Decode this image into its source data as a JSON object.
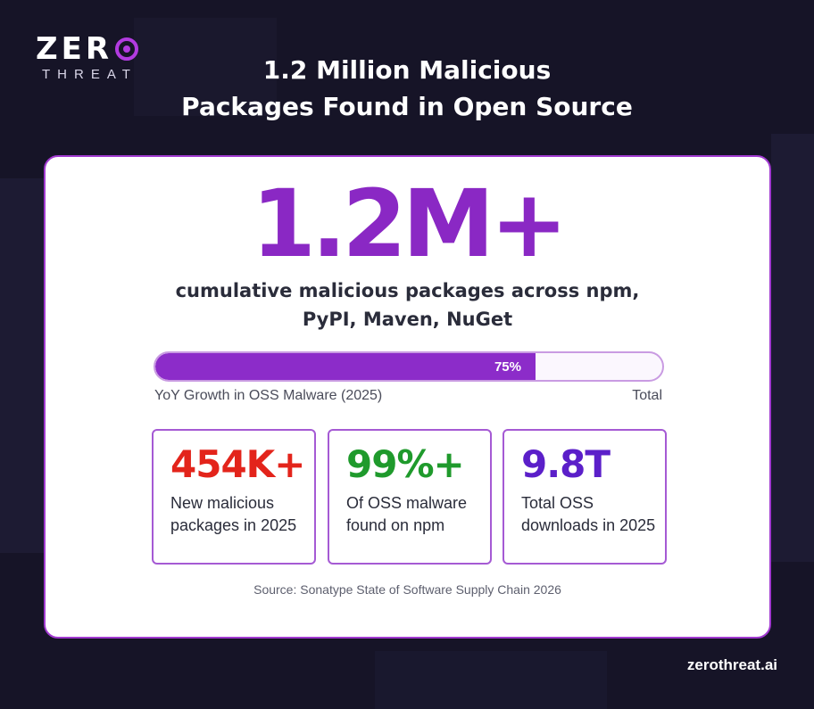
{
  "logo": {
    "top": "ZER",
    "bottom": "THREAT"
  },
  "headline": {
    "line1": "1.2 Million Malicious",
    "line2": "Packages Found in Open Source"
  },
  "card": {
    "big_number": "1.2M+",
    "subline1": "cumulative malicious packages across npm,",
    "subline2": "PyPI, Maven, NuGet",
    "progress": {
      "value_percent": 75,
      "label": "75%",
      "left_label": "YoY Growth in OSS Malware (2025)",
      "right_label": "Total"
    },
    "stats": [
      {
        "value": "454K+",
        "desc": "New malicious packages in 2025",
        "color": "#e3241b"
      },
      {
        "value": "99%+",
        "desc": "Of OSS malware found on npm",
        "color": "#1f9a2c"
      },
      {
        "value": "9.8T",
        "desc": "Total OSS downloads in 2025",
        "color": "#5b1fc9"
      }
    ],
    "source": "Source: Sonatype State of Software Supply Chain 2026"
  },
  "footer": {
    "url": "zerothreat.ai"
  },
  "colors": {
    "accent": "#8a28c4",
    "background": "#161427"
  }
}
